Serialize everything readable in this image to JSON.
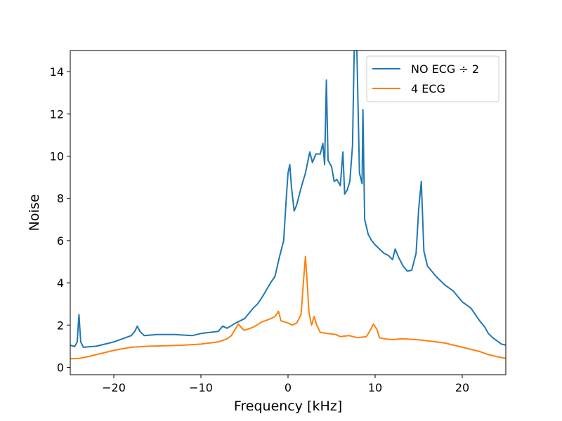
{
  "chart_data": {
    "type": "line",
    "title": "",
    "xlabel": "Frequency [kHz]",
    "ylabel": "Noise",
    "xlim": [
      -25,
      25
    ],
    "ylim": [
      -0.35,
      15
    ],
    "grid": false,
    "legend_position": "top-right",
    "x_ticks": [
      -20,
      -10,
      0,
      10,
      20
    ],
    "x_tick_labels": [
      "−20",
      "−10",
      "0",
      "10",
      "20"
    ],
    "y_ticks": [
      0,
      2,
      4,
      6,
      8,
      10,
      12,
      14
    ],
    "y_tick_labels": [
      "0",
      "2",
      "4",
      "6",
      "8",
      "10",
      "12",
      "14"
    ],
    "series": [
      {
        "name": "NO ECG ÷ 2",
        "color": "#1f77b4",
        "points": [
          [
            -25,
            1.05
          ],
          [
            -24.5,
            0.98
          ],
          [
            -24.2,
            1.2
          ],
          [
            -24.0,
            2.5
          ],
          [
            -23.8,
            1.2
          ],
          [
            -23.5,
            0.95
          ],
          [
            -22,
            1.0
          ],
          [
            -21,
            1.1
          ],
          [
            -20,
            1.2
          ],
          [
            -19,
            1.35
          ],
          [
            -18,
            1.5
          ],
          [
            -17.6,
            1.7
          ],
          [
            -17.3,
            1.95
          ],
          [
            -17.0,
            1.7
          ],
          [
            -16.5,
            1.5
          ],
          [
            -15,
            1.55
          ],
          [
            -13,
            1.55
          ],
          [
            -11,
            1.5
          ],
          [
            -10,
            1.6
          ],
          [
            -9,
            1.65
          ],
          [
            -8,
            1.7
          ],
          [
            -7.5,
            1.95
          ],
          [
            -7,
            1.85
          ],
          [
            -6,
            2.1
          ],
          [
            -5,
            2.3
          ],
          [
            -4,
            2.8
          ],
          [
            -3.5,
            3.0
          ],
          [
            -3,
            3.3
          ],
          [
            -2,
            4.0
          ],
          [
            -1.5,
            4.3
          ],
          [
            -1,
            5.2
          ],
          [
            -0.5,
            6.0
          ],
          [
            -0.2,
            8.0
          ],
          [
            0,
            9.2
          ],
          [
            0.2,
            9.6
          ],
          [
            0.4,
            8.5
          ],
          [
            0.7,
            7.4
          ],
          [
            1,
            7.7
          ],
          [
            1.5,
            8.5
          ],
          [
            2,
            9.2
          ],
          [
            2.5,
            10.2
          ],
          [
            2.8,
            9.7
          ],
          [
            3.2,
            10.1
          ],
          [
            3.7,
            10.1
          ],
          [
            4.0,
            10.6
          ],
          [
            4.2,
            9.6
          ],
          [
            4.4,
            13.6
          ],
          [
            4.6,
            9.8
          ],
          [
            5,
            9.5
          ],
          [
            5.3,
            8.8
          ],
          [
            5.6,
            8.9
          ],
          [
            6,
            8.6
          ],
          [
            6.3,
            10.2
          ],
          [
            6.5,
            8.2
          ],
          [
            6.8,
            8.4
          ],
          [
            7.1,
            8.8
          ],
          [
            7.4,
            10.5
          ],
          [
            7.6,
            15.0
          ],
          [
            7.9,
            15.0
          ],
          [
            8.2,
            9.2
          ],
          [
            8.5,
            8.7
          ],
          [
            8.6,
            12.2
          ],
          [
            8.8,
            7.0
          ],
          [
            9.2,
            6.3
          ],
          [
            9.6,
            6.0
          ],
          [
            10,
            5.8
          ],
          [
            10.5,
            5.6
          ],
          [
            11,
            5.4
          ],
          [
            11.5,
            5.3
          ],
          [
            12,
            5.1
          ],
          [
            12.3,
            5.6
          ],
          [
            12.7,
            5.2
          ],
          [
            13.2,
            4.8
          ],
          [
            13.7,
            4.55
          ],
          [
            14.2,
            4.6
          ],
          [
            14.7,
            5.4
          ],
          [
            15.0,
            7.5
          ],
          [
            15.3,
            8.8
          ],
          [
            15.6,
            5.5
          ],
          [
            16,
            4.8
          ],
          [
            17,
            4.3
          ],
          [
            18,
            3.9
          ],
          [
            19,
            3.6
          ],
          [
            20,
            3.1
          ],
          [
            21,
            2.8
          ],
          [
            22,
            2.2
          ],
          [
            22.6,
            1.9
          ],
          [
            23,
            1.6
          ],
          [
            23.5,
            1.4
          ],
          [
            24,
            1.25
          ],
          [
            24.5,
            1.1
          ],
          [
            25,
            1.05
          ]
        ]
      },
      {
        "name": "4 ECG",
        "color": "#ff7f0e",
        "points": [
          [
            -25,
            0.4
          ],
          [
            -24,
            0.42
          ],
          [
            -23,
            0.5
          ],
          [
            -22,
            0.6
          ],
          [
            -21,
            0.7
          ],
          [
            -20,
            0.8
          ],
          [
            -19,
            0.88
          ],
          [
            -18,
            0.95
          ],
          [
            -16,
            1.0
          ],
          [
            -14,
            1.02
          ],
          [
            -12,
            1.05
          ],
          [
            -10,
            1.1
          ],
          [
            -8,
            1.2
          ],
          [
            -7,
            1.35
          ],
          [
            -6.5,
            1.5
          ],
          [
            -6,
            1.85
          ],
          [
            -5.7,
            2.05
          ],
          [
            -5.3,
            1.85
          ],
          [
            -5,
            1.75
          ],
          [
            -4,
            1.9
          ],
          [
            -3,
            2.15
          ],
          [
            -2,
            2.3
          ],
          [
            -1.5,
            2.4
          ],
          [
            -1.1,
            2.65
          ],
          [
            -0.8,
            2.2
          ],
          [
            0,
            2.1
          ],
          [
            0.5,
            2.0
          ],
          [
            1,
            2.1
          ],
          [
            1.5,
            2.5
          ],
          [
            1.8,
            4.2
          ],
          [
            2.0,
            5.25
          ],
          [
            2.2,
            4.0
          ],
          [
            2.4,
            2.6
          ],
          [
            2.7,
            2.0
          ],
          [
            3.0,
            2.4
          ],
          [
            3.3,
            2.0
          ],
          [
            3.7,
            1.65
          ],
          [
            4.5,
            1.6
          ],
          [
            5.5,
            1.55
          ],
          [
            6,
            1.45
          ],
          [
            7,
            1.5
          ],
          [
            8,
            1.4
          ],
          [
            9,
            1.45
          ],
          [
            9.5,
            1.8
          ],
          [
            9.8,
            2.05
          ],
          [
            10.2,
            1.8
          ],
          [
            10.5,
            1.4
          ],
          [
            11,
            1.35
          ],
          [
            12,
            1.3
          ],
          [
            13,
            1.35
          ],
          [
            15,
            1.3
          ],
          [
            17,
            1.2
          ],
          [
            18,
            1.15
          ],
          [
            19,
            1.05
          ],
          [
            20,
            0.95
          ],
          [
            21,
            0.85
          ],
          [
            22,
            0.75
          ],
          [
            23,
            0.6
          ],
          [
            24,
            0.5
          ],
          [
            25,
            0.42
          ]
        ]
      }
    ]
  }
}
